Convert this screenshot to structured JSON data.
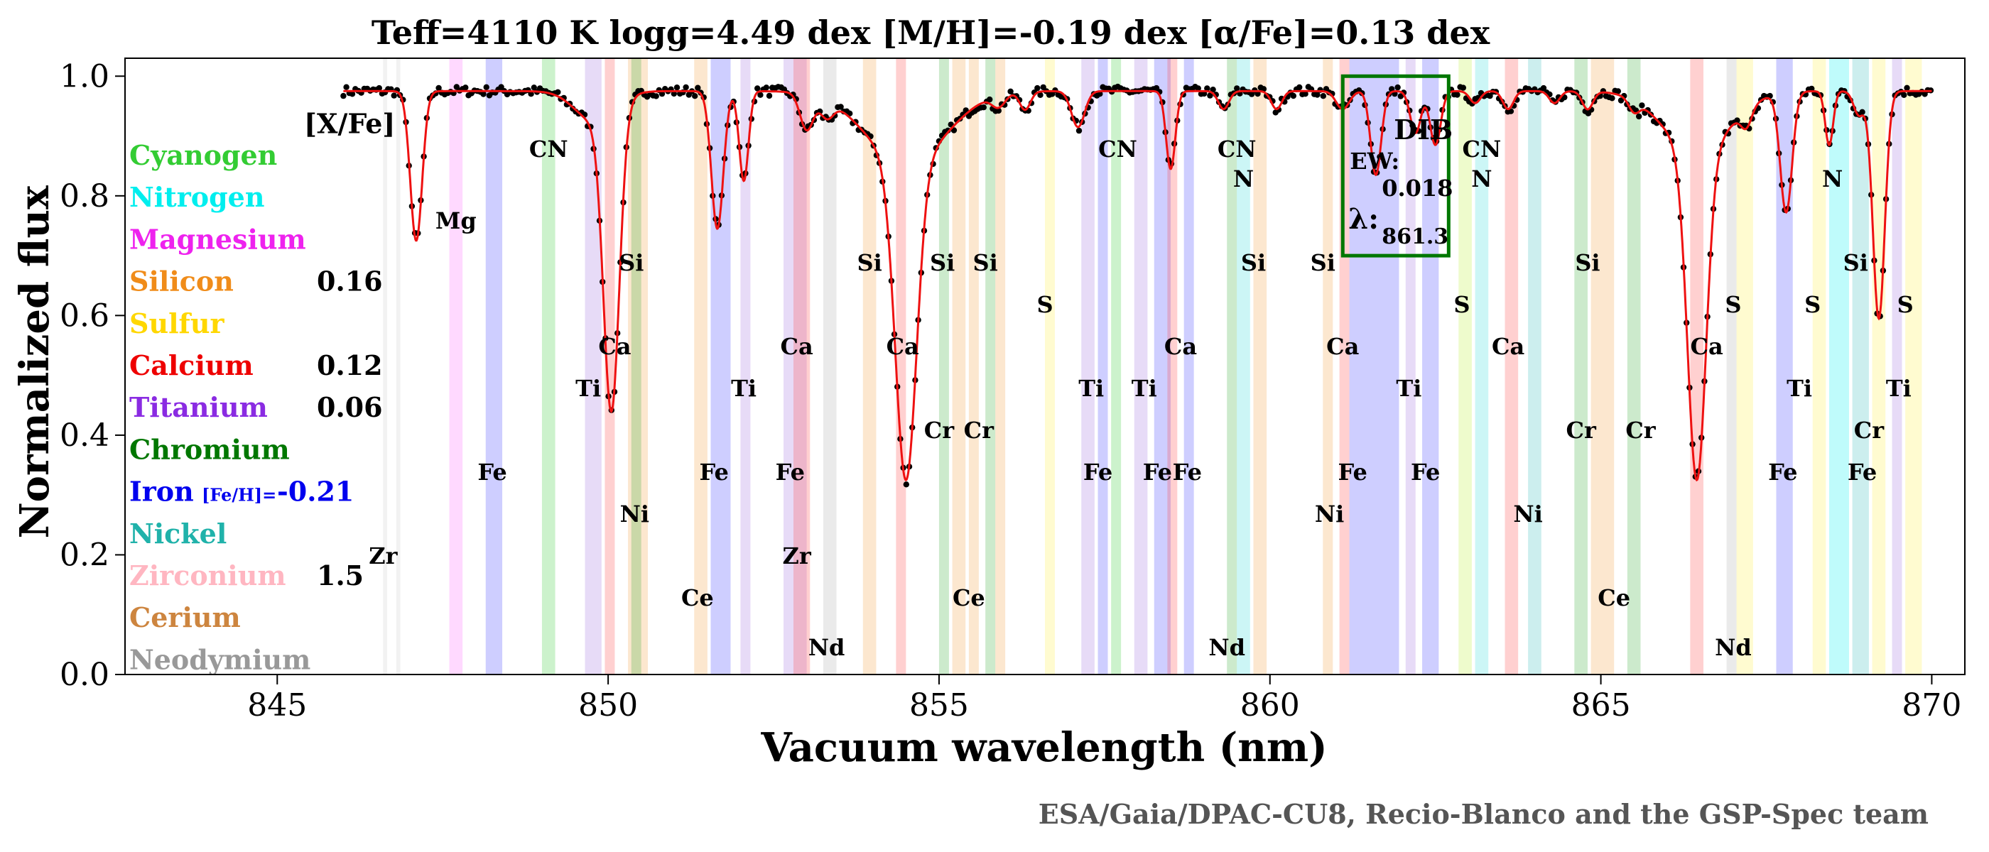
{
  "chart_data": {
    "type": "line",
    "title": "Teff=4110 K logg=4.49 dex [M/H]=-0.19 dex [α/Fe]=0.13 dex",
    "xlabel": "Vacuum wavelength (nm)",
    "ylabel": "Normalized flux",
    "xlim": [
      842.7,
      870.5
    ],
    "ylim": [
      0.0,
      1.03
    ],
    "xticks": [
      845,
      850,
      855,
      860,
      865,
      870
    ],
    "xtick_labels": [
      "845",
      "850",
      "855",
      "860",
      "865",
      "870"
    ],
    "yticks": [
      0.0,
      0.2,
      0.4,
      0.6,
      0.8,
      1.0
    ],
    "ytick_labels": [
      "0.0",
      "0.2",
      "0.4",
      "0.6",
      "0.8",
      "1.0"
    ],
    "grid": false,
    "continuum": 0.975,
    "x_start": 846.0,
    "x_end": 870.0,
    "absorption_lines": [
      {
        "center": 847.1,
        "depth": 0.25,
        "width": 0.09
      },
      {
        "center": 849.8,
        "depth": 0.05,
        "width": 0.3
      },
      {
        "center": 850.05,
        "depth": 0.5,
        "width": 0.12
      },
      {
        "center": 851.65,
        "depth": 0.23,
        "width": 0.09
      },
      {
        "center": 852.05,
        "depth": 0.15,
        "width": 0.07
      },
      {
        "center": 853.0,
        "depth": 0.06,
        "width": 0.1
      },
      {
        "center": 853.3,
        "depth": 0.03,
        "width": 0.1
      },
      {
        "center": 854.5,
        "depth": 0.53,
        "width": 0.16
      },
      {
        "center": 854.5,
        "depth": 0.12,
        "width": 0.6
      },
      {
        "center": 855.9,
        "depth": 0.02,
        "width": 0.1
      },
      {
        "center": 856.3,
        "depth": 0.03,
        "width": 0.08
      },
      {
        "center": 857.1,
        "depth": 0.06,
        "width": 0.1
      },
      {
        "center": 858.5,
        "depth": 0.13,
        "width": 0.07
      },
      {
        "center": 859.3,
        "depth": 0.03,
        "width": 0.08
      },
      {
        "center": 860.1,
        "depth": 0.03,
        "width": 0.08
      },
      {
        "center": 861.1,
        "depth": 0.03,
        "width": 0.1
      },
      {
        "center": 861.6,
        "depth": 0.14,
        "width": 0.08
      },
      {
        "center": 862.2,
        "depth": 0.07,
        "width": 0.08
      },
      {
        "center": 862.5,
        "depth": 0.09,
        "width": 0.08
      },
      {
        "center": 863.1,
        "depth": 0.02,
        "width": 0.08
      },
      {
        "center": 863.6,
        "depth": 0.03,
        "width": 0.08
      },
      {
        "center": 864.3,
        "depth": 0.02,
        "width": 0.08
      },
      {
        "center": 864.8,
        "depth": 0.03,
        "width": 0.08
      },
      {
        "center": 865.5,
        "depth": 0.02,
        "width": 0.08
      },
      {
        "center": 866.45,
        "depth": 0.55,
        "width": 0.14
      },
      {
        "center": 866.45,
        "depth": 0.1,
        "width": 0.5
      },
      {
        "center": 867.2,
        "depth": 0.03,
        "width": 0.08
      },
      {
        "center": 867.8,
        "depth": 0.2,
        "width": 0.09
      },
      {
        "center": 868.45,
        "depth": 0.09,
        "width": 0.06
      },
      {
        "center": 868.9,
        "depth": 0.04,
        "width": 0.08
      },
      {
        "center": 869.2,
        "depth": 0.38,
        "width": 0.09
      }
    ],
    "element_labels": [
      {
        "text": "Mg",
        "x": 847.7,
        "y": 0.745
      },
      {
        "text": "CN",
        "x": 849.1,
        "y": 0.865
      },
      {
        "text": "CN",
        "x": 857.7,
        "y": 0.865
      },
      {
        "text": "CN",
        "x": 859.5,
        "y": 0.865
      },
      {
        "text": "CN",
        "x": 863.2,
        "y": 0.865
      },
      {
        "text": "N",
        "x": 859.6,
        "y": 0.815
      },
      {
        "text": "N",
        "x": 863.2,
        "y": 0.815
      },
      {
        "text": "N",
        "x": 868.5,
        "y": 0.815
      },
      {
        "text": "Si",
        "x": 850.35,
        "y": 0.675
      },
      {
        "text": "Si",
        "x": 853.95,
        "y": 0.675
      },
      {
        "text": "Si",
        "x": 855.05,
        "y": 0.675
      },
      {
        "text": "Si",
        "x": 855.7,
        "y": 0.675
      },
      {
        "text": "Si",
        "x": 859.75,
        "y": 0.675
      },
      {
        "text": "Si",
        "x": 860.8,
        "y": 0.675
      },
      {
        "text": "Si",
        "x": 864.8,
        "y": 0.675
      },
      {
        "text": "Si",
        "x": 868.85,
        "y": 0.675
      },
      {
        "text": "S",
        "x": 856.6,
        "y": 0.605
      },
      {
        "text": "S",
        "x": 862.9,
        "y": 0.605
      },
      {
        "text": "S",
        "x": 867.0,
        "y": 0.605
      },
      {
        "text": "S",
        "x": 868.2,
        "y": 0.605
      },
      {
        "text": "S",
        "x": 869.6,
        "y": 0.605
      },
      {
        "text": "Ca",
        "x": 850.1,
        "y": 0.535
      },
      {
        "text": "Ca",
        "x": 852.85,
        "y": 0.535
      },
      {
        "text": "Ca",
        "x": 854.45,
        "y": 0.535
      },
      {
        "text": "Ca",
        "x": 858.65,
        "y": 0.535
      },
      {
        "text": "Ca",
        "x": 861.1,
        "y": 0.535
      },
      {
        "text": "Ca",
        "x": 863.6,
        "y": 0.535
      },
      {
        "text": "Ca",
        "x": 866.6,
        "y": 0.535
      },
      {
        "text": "Ti",
        "x": 849.7,
        "y": 0.465
      },
      {
        "text": "Ti",
        "x": 852.05,
        "y": 0.465
      },
      {
        "text": "Ti",
        "x": 857.3,
        "y": 0.465
      },
      {
        "text": "Ti",
        "x": 858.1,
        "y": 0.465
      },
      {
        "text": "Ti",
        "x": 862.1,
        "y": 0.465
      },
      {
        "text": "Ti",
        "x": 868.0,
        "y": 0.465
      },
      {
        "text": "Ti",
        "x": 869.5,
        "y": 0.465
      },
      {
        "text": "Cr",
        "x": 855.0,
        "y": 0.395
      },
      {
        "text": "Cr",
        "x": 855.6,
        "y": 0.395
      },
      {
        "text": "Cr",
        "x": 864.7,
        "y": 0.395
      },
      {
        "text": "Cr",
        "x": 865.6,
        "y": 0.395
      },
      {
        "text": "Cr",
        "x": 869.05,
        "y": 0.395
      },
      {
        "text": "Fe",
        "x": 848.25,
        "y": 0.325
      },
      {
        "text": "Fe",
        "x": 851.6,
        "y": 0.325
      },
      {
        "text": "Fe",
        "x": 852.75,
        "y": 0.325
      },
      {
        "text": "Fe",
        "x": 857.4,
        "y": 0.325
      },
      {
        "text": "Fe",
        "x": 858.3,
        "y": 0.325
      },
      {
        "text": "Fe",
        "x": 858.75,
        "y": 0.325
      },
      {
        "text": "Fe",
        "x": 861.25,
        "y": 0.325
      },
      {
        "text": "Fe",
        "x": 862.35,
        "y": 0.325
      },
      {
        "text": "Fe",
        "x": 867.75,
        "y": 0.325
      },
      {
        "text": "Fe",
        "x": 868.95,
        "y": 0.325
      },
      {
        "text": "Ni",
        "x": 850.4,
        "y": 0.255
      },
      {
        "text": "Ni",
        "x": 860.9,
        "y": 0.255
      },
      {
        "text": "Ni",
        "x": 863.9,
        "y": 0.255
      },
      {
        "text": "Zr",
        "x": 846.6,
        "y": 0.185
      },
      {
        "text": "Zr",
        "x": 852.85,
        "y": 0.185
      },
      {
        "text": "Ce",
        "x": 851.35,
        "y": 0.115
      },
      {
        "text": "Ce",
        "x": 855.45,
        "y": 0.115
      },
      {
        "text": "Ce",
        "x": 865.2,
        "y": 0.115
      },
      {
        "text": "Nd",
        "x": 853.3,
        "y": 0.032
      },
      {
        "text": "Nd",
        "x": 859.35,
        "y": 0.032
      },
      {
        "text": "Nd",
        "x": 867.0,
        "y": 0.032
      }
    ],
    "element_bands": [
      {
        "x0": 846.6,
        "x1": 846.66,
        "color": "#cccccc"
      },
      {
        "x0": 846.8,
        "x1": 846.86,
        "color": "#cccccc"
      },
      {
        "x0": 847.6,
        "x1": 847.8,
        "color": "#ff66ff"
      },
      {
        "x0": 848.15,
        "x1": 848.4,
        "color": "#3b3bff"
      },
      {
        "x0": 849.0,
        "x1": 849.2,
        "color": "#33cc33"
      },
      {
        "x0": 849.65,
        "x1": 849.9,
        "color": "#a070e0"
      },
      {
        "x0": 849.95,
        "x1": 850.1,
        "color": "#ff4444"
      },
      {
        "x0": 850.3,
        "x1": 850.6,
        "color": "#f5a040"
      },
      {
        "x0": 850.35,
        "x1": 850.5,
        "color": "#33aa33"
      },
      {
        "x0": 851.3,
        "x1": 851.5,
        "color": "#f5a040"
      },
      {
        "x0": 851.55,
        "x1": 851.85,
        "color": "#3b3bff"
      },
      {
        "x0": 852.0,
        "x1": 852.15,
        "color": "#a070e0"
      },
      {
        "x0": 852.65,
        "x1": 853.0,
        "color": "#a070e0"
      },
      {
        "x0": 852.8,
        "x1": 853.05,
        "color": "#ff4444"
      },
      {
        "x0": 853.25,
        "x1": 853.45,
        "color": "#aaaaaa"
      },
      {
        "x0": 853.85,
        "x1": 854.05,
        "color": "#f5a040"
      },
      {
        "x0": 854.35,
        "x1": 854.5,
        "color": "#ff4444"
      },
      {
        "x0": 855.0,
        "x1": 855.15,
        "color": "#33aa33"
      },
      {
        "x0": 855.2,
        "x1": 855.4,
        "color": "#f5a040"
      },
      {
        "x0": 855.45,
        "x1": 855.6,
        "color": "#f5a040"
      },
      {
        "x0": 855.7,
        "x1": 855.85,
        "color": "#33aa33"
      },
      {
        "x0": 855.85,
        "x1": 856.0,
        "color": "#f5a040"
      },
      {
        "x0": 856.6,
        "x1": 856.75,
        "color": "#ffee44"
      },
      {
        "x0": 857.15,
        "x1": 857.35,
        "color": "#a070e0"
      },
      {
        "x0": 857.4,
        "x1": 857.55,
        "color": "#3b3bff"
      },
      {
        "x0": 857.6,
        "x1": 857.75,
        "color": "#33cc33"
      },
      {
        "x0": 857.95,
        "x1": 858.15,
        "color": "#a070e0"
      },
      {
        "x0": 858.25,
        "x1": 858.5,
        "color": "#3b3bff"
      },
      {
        "x0": 858.45,
        "x1": 858.6,
        "color": "#ff4444"
      },
      {
        "x0": 858.7,
        "x1": 858.85,
        "color": "#3b3bff"
      },
      {
        "x0": 859.35,
        "x1": 859.5,
        "color": "#33aa33"
      },
      {
        "x0": 859.5,
        "x1": 859.7,
        "color": "#33dddd"
      },
      {
        "x0": 859.75,
        "x1": 859.95,
        "color": "#f5a040"
      },
      {
        "x0": 860.8,
        "x1": 860.95,
        "color": "#f5a040"
      },
      {
        "x0": 861.05,
        "x1": 861.2,
        "color": "#ff4444"
      },
      {
        "x0": 861.2,
        "x1": 861.95,
        "color": "#3b3bff"
      },
      {
        "x0": 862.05,
        "x1": 862.2,
        "color": "#a070e0"
      },
      {
        "x0": 862.3,
        "x1": 862.55,
        "color": "#3b3bff"
      },
      {
        "x0": 862.85,
        "x1": 863.05,
        "color": "#bbee33"
      },
      {
        "x0": 863.1,
        "x1": 863.3,
        "color": "#33dddd"
      },
      {
        "x0": 863.55,
        "x1": 863.75,
        "color": "#ff4444"
      },
      {
        "x0": 863.9,
        "x1": 864.1,
        "color": "#33bbbb"
      },
      {
        "x0": 864.6,
        "x1": 864.8,
        "color": "#33aa33"
      },
      {
        "x0": 864.85,
        "x1": 865.2,
        "color": "#f5a040"
      },
      {
        "x0": 865.4,
        "x1": 865.6,
        "color": "#33aa33"
      },
      {
        "x0": 866.35,
        "x1": 866.55,
        "color": "#ff4444"
      },
      {
        "x0": 866.9,
        "x1": 867.05,
        "color": "#aaaaaa"
      },
      {
        "x0": 867.05,
        "x1": 867.3,
        "color": "#ffee44"
      },
      {
        "x0": 867.65,
        "x1": 867.9,
        "color": "#3b3bff"
      },
      {
        "x0": 868.2,
        "x1": 868.4,
        "color": "#ffee44"
      },
      {
        "x0": 868.45,
        "x1": 868.75,
        "color": "#00eeee"
      },
      {
        "x0": 868.8,
        "x1": 869.05,
        "color": "#33bbbb"
      },
      {
        "x0": 869.1,
        "x1": 869.3,
        "color": "#ffee44"
      },
      {
        "x0": 869.4,
        "x1": 869.55,
        "color": "#a070e0"
      },
      {
        "x0": 869.6,
        "x1": 869.85,
        "color": "#ffee44"
      }
    ],
    "dib": {
      "label": "DIB",
      "ew_label": "EW:",
      "ew_value": "0.018",
      "lambda_label": "λ:",
      "lambda_value": "861.3",
      "x0": 861.1,
      "x1": 862.7,
      "y0": 0.7,
      "y1": 1.0
    },
    "xfe_header": "[X/Fe]",
    "elements": [
      {
        "name": "Cyanogen",
        "abundance": "",
        "color": "#33cc33"
      },
      {
        "name": "Nitrogen",
        "abundance": "",
        "color": "#00eeee"
      },
      {
        "name": "Magnesium",
        "abundance": "",
        "color": "#ee22ee"
      },
      {
        "name": "Silicon",
        "abundance": "0.16",
        "color": "#f08c1a"
      },
      {
        "name": "Sulfur",
        "abundance": "",
        "color": "#ffd700"
      },
      {
        "name": "Calcium",
        "abundance": "0.12",
        "color": "#ee0000"
      },
      {
        "name": "Titanium",
        "abundance": "0.06",
        "color": "#8a2be2"
      },
      {
        "name": "Chromium",
        "abundance": "",
        "color": "#007700"
      },
      {
        "name": "Iron",
        "subscript": "[Fe/H]=",
        "abundance": "-0.21",
        "color": "#0000ee"
      },
      {
        "name": "Nickel",
        "abundance": "",
        "color": "#20b2aa"
      },
      {
        "name": "Zirconium",
        "abundance": "1.5",
        "color": "#ffb6c1"
      },
      {
        "name": "Cerium",
        "abundance": "",
        "color": "#cd853f"
      },
      {
        "name": "Neodymium",
        "abundance": "",
        "color": "#999999"
      }
    ],
    "series": [
      {
        "style": "observed-points",
        "color": "#000000"
      },
      {
        "style": "synthetic-line",
        "color": "#ee1111"
      }
    ]
  },
  "credit": "ESA/Gaia/DPAC-CU8, Recio-Blanco and the GSP-Spec team"
}
